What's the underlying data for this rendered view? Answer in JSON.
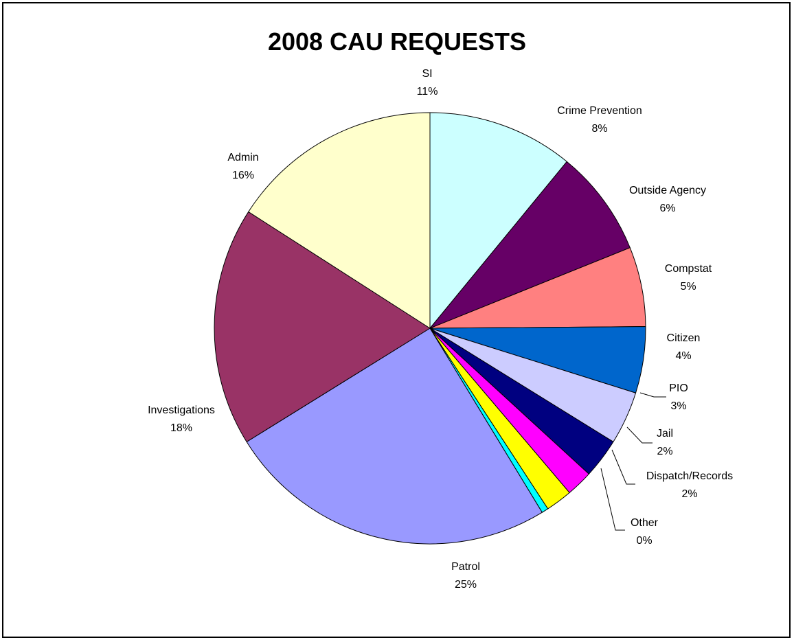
{
  "chart_data": {
    "type": "pie",
    "title": "2008 CAU REQUESTS",
    "slices": [
      {
        "label": "SI",
        "percent_label": "11%",
        "value": 11,
        "color": "#CCFFFF"
      },
      {
        "label": "Crime Prevention",
        "percent_label": "8%",
        "value": 8,
        "color": "#660066"
      },
      {
        "label": "Outside Agency",
        "percent_label": "6%",
        "value": 6,
        "color": "#FF8080"
      },
      {
        "label": "Compstat",
        "percent_label": "5%",
        "value": 5,
        "color": "#0066CC"
      },
      {
        "label": "Citizen",
        "percent_label": "4%",
        "value": 4,
        "color": "#CCCCFF"
      },
      {
        "label": "PIO",
        "percent_label": "3%",
        "value": 3,
        "color": "#000080"
      },
      {
        "label": "Jail",
        "percent_label": "2%",
        "value": 2,
        "color": "#FF00FF"
      },
      {
        "label": "Dispatch/Records",
        "percent_label": "2%",
        "value": 2,
        "color": "#FFFF00"
      },
      {
        "label": "Other",
        "percent_label": "0%",
        "value": 0.5,
        "color": "#00FFFF"
      },
      {
        "label": "Patrol",
        "percent_label": "25%",
        "value": 25,
        "color": "#9999FF"
      },
      {
        "label": "Investigations",
        "percent_label": "18%",
        "value": 18,
        "color": "#993366"
      },
      {
        "label": "Admin",
        "percent_label": "16%",
        "value": 16,
        "color": "#FFFFCC"
      }
    ],
    "start_angle_deg": 0,
    "direction": "clockwise",
    "legend": "none"
  }
}
